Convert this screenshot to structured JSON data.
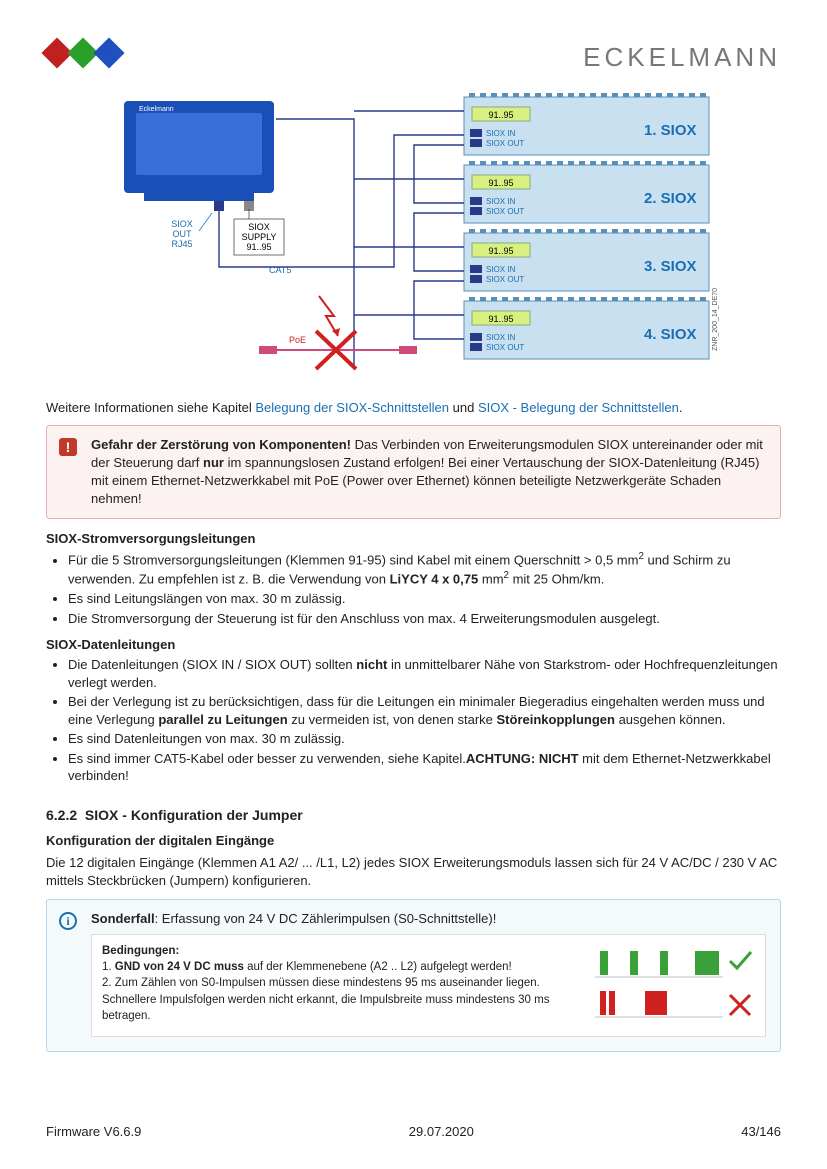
{
  "brand": "ECKELMANN",
  "logo_colors": [
    "#c02020",
    "#2aa02a",
    "#2050c0"
  ],
  "diagram": {
    "device_label": "Eckelmann",
    "siox_out_label": "SIOX\nOUT\nRJ45",
    "siox_supply_label": "SIOX\nSUPPLY\n91..95",
    "cat5_label": "CAT5",
    "poe_label": "PoE",
    "znr_label": "ZNR_200_14_DE70",
    "module_terminal": "91..95",
    "siox_in": "SIOX IN",
    "siox_out": "SIOX OUT",
    "modules": [
      "1. SIOX",
      "2. SIOX",
      "3. SIOX",
      "4. SIOX"
    ],
    "colors": {
      "device_body": "#1b4fb8",
      "device_screen": "#3a6fd8",
      "module_bg": "#c8e0f0",
      "module_border": "#5a8fb8",
      "terminal_bg": "#d8f080",
      "wire": "#2a3a8a",
      "cross": "#d02020",
      "poe_cable": "#d04a7a",
      "siox_text": "#1a6fb3"
    }
  },
  "intro": {
    "text": "Weitere Informationen siehe Kapitel ",
    "link1": "Belegung der SIOX-Schnittstellen",
    "mid": " und ",
    "link2": "SIOX - Belegung der Schnittstellen",
    "end": "."
  },
  "alert": {
    "title": "Gefahr der Zerstörung von Komponenten!",
    "body_a": " Das Verbinden von Erweiterungsmodulen SIOX untereinander oder mit der Steuerung darf ",
    "bold1": "nur",
    "body_b": " im spannungslosen Zustand erfolgen! Bei einer Vertauschung der SIOX-Datenleitung (RJ45) mit einem Ethernet-Netzwerkkabel mit PoE (Power over Ethernet) können beteiligte Netzwerkgeräte Schaden nehmen!"
  },
  "power": {
    "heading": "SIOX-Stromversorgungsleitungen",
    "b1a": "Für die 5 Stromversorgungsleitungen (Klemmen 91-95) sind Kabel mit einem Querschnitt > 0,5 mm",
    "b1b": " und Schirm zu verwenden. Zu empfehlen ist z. B. die Verwendung von ",
    "b1bold": "LiYCY 4 x 0,75",
    "b1c": " mm",
    "b1d": " mit 25 Ohm/km.",
    "b2": "Es sind Leitungslängen von max. 30 m zulässig.",
    "b3": "Die Stromversorgung der Steuerung ist für den Anschluss von max. 4 Erweiterungsmodulen ausgelegt."
  },
  "data": {
    "heading": "SIOX-Datenleitungen",
    "b1a": "Die Datenleitungen (SIOX IN / SIOX OUT) sollten ",
    "b1bold": "nicht",
    "b1b": " in unmittelbarer Nähe von Starkstrom- oder Hochfrequenzleitungen verlegt werden.",
    "b2a": "Bei der Verlegung ist zu berücksichtigen, dass für die Leitungen ein minimaler Biegeradius eingehalten werden muss und eine Verlegung ",
    "b2bold1": "parallel zu Leitungen",
    "b2b": " zu vermeiden ist, von denen starke ",
    "b2bold2": "Störeinkopplungen",
    "b2c": " ausgehen können.",
    "b3": "Es sind Datenleitungen von max. 30 m zulässig.",
    "b4a": "Es sind immer CAT5-Kabel oder besser zu verwenden, siehe Kapitel.",
    "b4bold": "ACHTUNG: NICHT",
    "b4b": " mit dem Ethernet-Netzwerkkabel verbinden!"
  },
  "section622": {
    "num": "6.2.2",
    "title": "SIOX - Konfiguration der Jumper",
    "sub": "Konfiguration der digitalen Eingänge",
    "body": "Die 12 digitalen Eingänge (Klemmen A1 A2/ ... /L1, L2) jedes SIOX Erweiterungsmoduls lassen sich für 24 V AC/DC / 230 V AC mittels Steckbrücken (Jumpern) konfigurieren."
  },
  "infobox": {
    "title_a": "Sonderfall",
    "title_b": ": Erfassung von 24 V DC Zählerimpulsen (S0-Schnittstelle)!",
    "cond_head": "Bedingungen",
    "c1a": "1. ",
    "c1bold": "GND von 24 V DC muss",
    "c1b": " auf der Klemmenebene (A2 .. L2) aufgelegt werden!",
    "c2": "2. Zum Zählen von S0-Impulsen müssen diese mindestens 95 ms auseinander liegen. Schnellere Impulsfolgen werden nicht erkannt, die Impulsbreite muss mindestens 30 ms betragen.",
    "pulse_ok_color": "#3aa03a",
    "pulse_bad_color": "#d02020"
  },
  "footer": {
    "left": "Firmware V6.6.9",
    "mid": "29.07.2020",
    "right": "43/146"
  }
}
